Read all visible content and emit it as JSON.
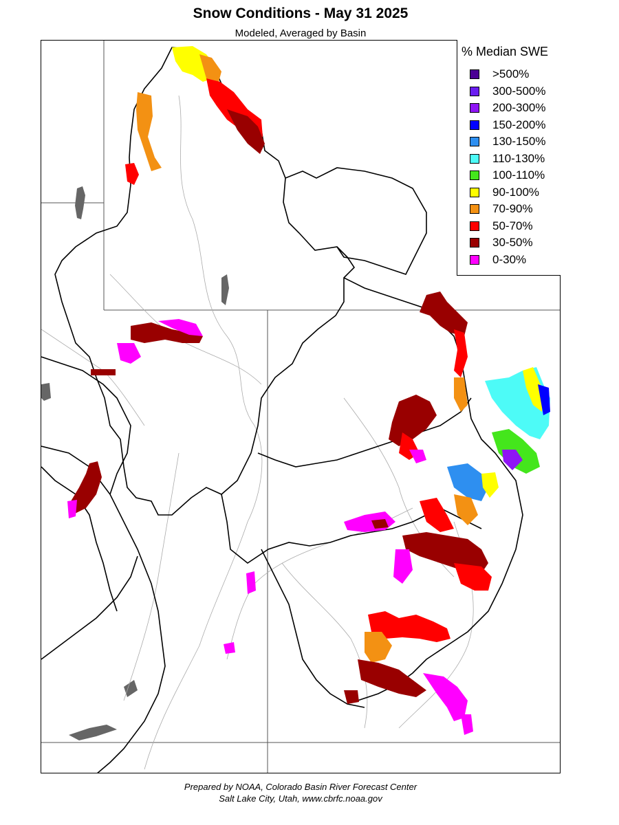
{
  "title": "Snow Conditions - May 31 2025",
  "subtitle": "Modeled, Averaged by Basin",
  "legend": {
    "title": "% Median SWE",
    "items": [
      {
        "label": ">500%",
        "color": "#4b0095"
      },
      {
        "label": "300-500%",
        "color": "#6a1df0"
      },
      {
        "label": "200-300%",
        "color": "#8f15f5"
      },
      {
        "label": "150-200%",
        "color": "#0000ff"
      },
      {
        "label": "130-150%",
        "color": "#2e8ff0"
      },
      {
        "label": "110-130%",
        "color": "#4dfbf7"
      },
      {
        "label": "100-110%",
        "color": "#44e61c"
      },
      {
        "label": "90-100%",
        "color": "#ffff00"
      },
      {
        "label": "70-90%",
        "color": "#f39113"
      },
      {
        "label": "50-70%",
        "color": "#ff0000"
      },
      {
        "label": "30-50%",
        "color": "#990000"
      },
      {
        "label": "0-30%",
        "color": "#ff00ff"
      }
    ]
  },
  "footer": {
    "line1": "Prepared by NOAA, Colorado Basin River Forecast Center",
    "line2": "Salt Lake City, Utah, www.cbrfc.noaa.gov"
  }
}
